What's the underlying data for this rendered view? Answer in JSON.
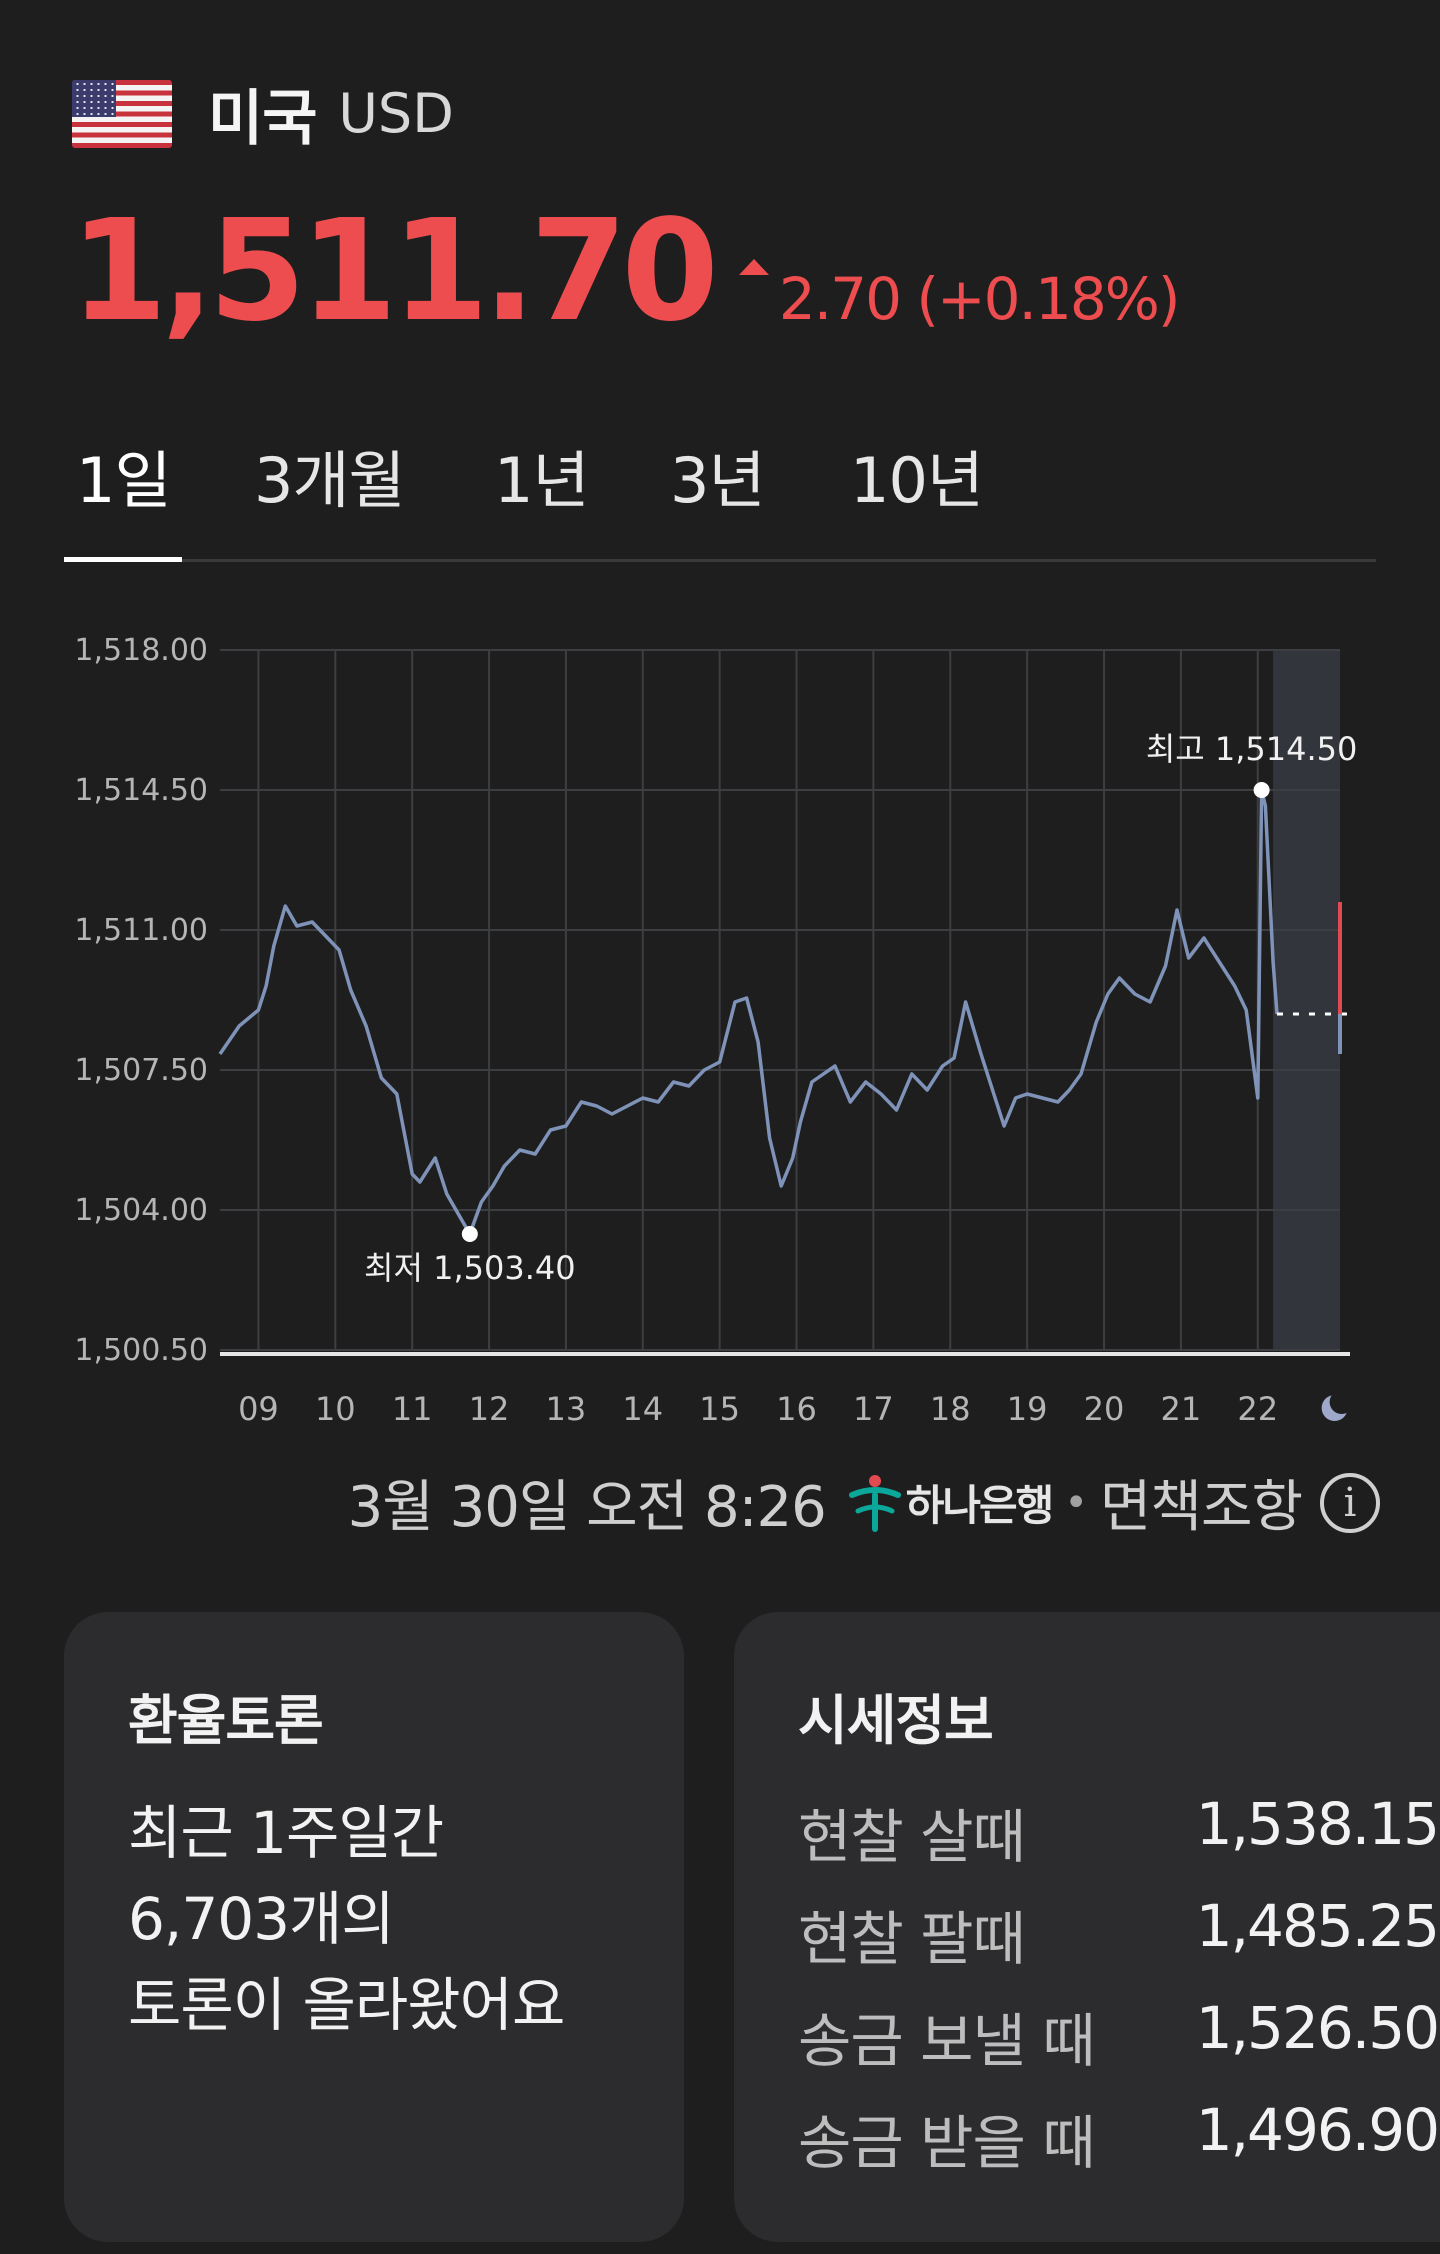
{
  "header": {
    "country": "미국",
    "currency_code": "USD",
    "flag_icon": "us-flag-icon"
  },
  "quote": {
    "price": "1,511.70",
    "change": "2.70 (+0.18%)",
    "direction": "up",
    "color": "#ee4d4f"
  },
  "tabs": [
    {
      "label": "1일",
      "active": true
    },
    {
      "label": "3개월",
      "active": false
    },
    {
      "label": "1년",
      "active": false
    },
    {
      "label": "3년",
      "active": false
    },
    {
      "label": "10년",
      "active": false
    }
  ],
  "chart_data": {
    "type": "line",
    "title": "",
    "xlabel": "",
    "ylabel": "",
    "ylim": [
      1500.5,
      1518.0
    ],
    "y_ticks": [
      "1,518.00",
      "1,514.50",
      "1,511.00",
      "1,507.50",
      "1,504.00",
      "1,500.50"
    ],
    "y_tick_values": [
      1518.0,
      1514.5,
      1511.0,
      1507.5,
      1504.0,
      1500.5
    ],
    "x_ticks": [
      "09",
      "10",
      "11",
      "12",
      "13",
      "14",
      "15",
      "16",
      "17",
      "18",
      "19",
      "20",
      "21",
      "22"
    ],
    "x_range": [
      8.5,
      23.2
    ],
    "night_icon": "moon-icon",
    "line_color": "#7f93b8",
    "grid": true,
    "series": [
      {
        "x": [
          8.5,
          8.75,
          9.0,
          9.1,
          9.2,
          9.35,
          9.5,
          9.7,
          9.9,
          10.05,
          10.2,
          10.4,
          10.6,
          10.8,
          11.0,
          11.1,
          11.3,
          11.45,
          11.6,
          11.75,
          11.9,
          12.05,
          12.2,
          12.4,
          12.6,
          12.8,
          13.0,
          13.2,
          13.4,
          13.6,
          13.8,
          14.0,
          14.2,
          14.4,
          14.6,
          14.8,
          15.0,
          15.2,
          15.35,
          15.5,
          15.65,
          15.8,
          15.95,
          16.05,
          16.2,
          16.35,
          16.5,
          16.7,
          16.9,
          17.1,
          17.3,
          17.5,
          17.7,
          17.9,
          18.05,
          18.2,
          18.4,
          18.6,
          18.7,
          18.85,
          19.0,
          19.2,
          19.4,
          19.55,
          19.7,
          19.9,
          20.05,
          20.2,
          20.4,
          20.6,
          20.8,
          20.95,
          21.1,
          21.3,
          21.5,
          21.7,
          21.85,
          22.0,
          22.05,
          22.1,
          22.2,
          22.25
        ],
        "y": [
          1507.9,
          1508.6,
          1509.0,
          1509.6,
          1510.6,
          1511.6,
          1511.1,
          1511.2,
          1510.8,
          1510.5,
          1509.5,
          1508.6,
          1507.3,
          1506.9,
          1504.9,
          1504.7,
          1505.3,
          1504.4,
          1503.9,
          1503.4,
          1504.2,
          1504.6,
          1505.1,
          1505.5,
          1505.4,
          1506.0,
          1506.1,
          1506.7,
          1506.6,
          1506.4,
          1506.6,
          1506.8,
          1506.7,
          1507.2,
          1507.1,
          1507.5,
          1507.7,
          1509.2,
          1509.3,
          1508.2,
          1505.8,
          1504.6,
          1505.3,
          1506.2,
          1507.2,
          1507.4,
          1507.6,
          1506.7,
          1507.2,
          1506.9,
          1506.5,
          1507.4,
          1507.0,
          1507.6,
          1507.8,
          1509.2,
          1507.9,
          1506.7,
          1506.1,
          1506.8,
          1506.9,
          1506.8,
          1506.7,
          1507.0,
          1507.4,
          1508.7,
          1509.4,
          1509.8,
          1509.4,
          1509.2,
          1510.1,
          1511.5,
          1510.3,
          1510.8,
          1510.2,
          1509.6,
          1509.0,
          1506.8,
          1514.5,
          1514.1,
          1510.2,
          1508.9
        ]
      }
    ],
    "high": {
      "label": "최고 1,514.50",
      "x": 22.05,
      "y": 1514.5
    },
    "low": {
      "label": "최저 1,503.40",
      "x": 11.75,
      "y": 1503.4
    },
    "current_value": 1508.9,
    "indicator_color": "#e24a52"
  },
  "meta": {
    "timestamp": "3월 30일 오전 8:26",
    "provider": "하나은행",
    "separator": "•",
    "disclaimer": "면책조항",
    "info_icon": "info-icon"
  },
  "debate_card": {
    "title": "환율토론",
    "lines": [
      "최근 1주일간",
      "6,703개의",
      "토론이 올라왔어요"
    ]
  },
  "rates_card": {
    "title": "시세정보",
    "rows": [
      {
        "label": "현찰 살때",
        "value": "1,538.15"
      },
      {
        "label": "현찰 팔때",
        "value": "1,485.25"
      },
      {
        "label": "송금 보낼 때",
        "value": "1,526.50"
      },
      {
        "label": "송금 받을 때",
        "value": "1,496.90"
      }
    ]
  }
}
